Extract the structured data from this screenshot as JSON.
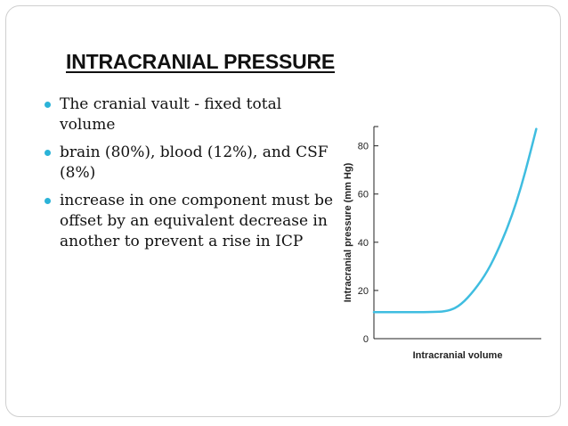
{
  "slide": {
    "title": "INTRACRANIAL PRESSURE",
    "bullets": [
      "The cranial vault - fixed total volume",
      "brain (80%), blood (12%), and CSF (8%)",
      "increase in one component must be offset by an equivalent decrease in another to prevent a rise in ICP"
    ]
  },
  "colors": {
    "bullet": "#2bb3d8",
    "curve": "#3fbde0",
    "axis": "#222222"
  },
  "chart_data": {
    "type": "line",
    "title": "",
    "xlabel": "Intracranial volume",
    "ylabel": "Intracranial pressure (mm Hg)",
    "ylim": [
      0,
      88
    ],
    "yticks": [
      "0",
      "20",
      "40",
      "60",
      "80"
    ],
    "xlim": [
      0,
      1
    ],
    "grid": false,
    "series": [
      {
        "x": [
          0.0,
          0.36,
          0.45,
          0.52,
          0.6,
          0.68,
          0.75,
          0.82,
          0.88,
          0.93,
          0.97
        ],
        "y": [
          11,
          11,
          11.5,
          14,
          20,
          28,
          38,
          50,
          63,
          76,
          87
        ]
      }
    ]
  }
}
